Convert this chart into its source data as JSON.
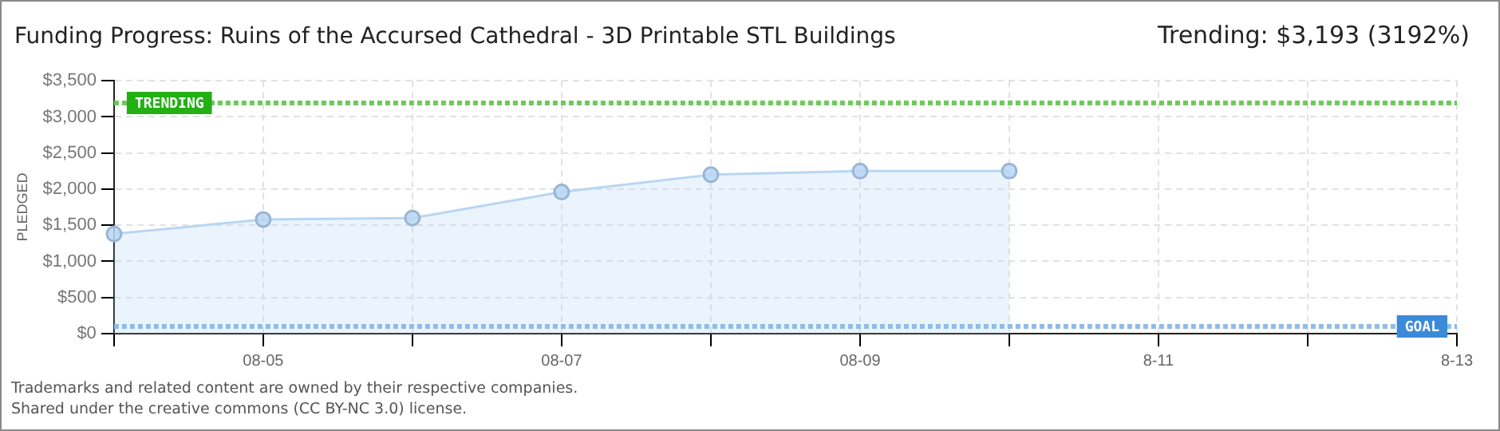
{
  "chart_data": {
    "type": "area",
    "title": "Funding Progress: Ruins of the Accursed Cathedral - 3D Printable STL Buildings",
    "subtitle": "Trending: $3,193 (3192%)",
    "ylabel": "PLEDGED",
    "categories": [
      null,
      "08-05",
      null,
      "08-07",
      null,
      "08-09",
      null,
      "8-11",
      null,
      "8-13"
    ],
    "series": [
      {
        "color": "#b8d6f3",
        "values": [
          1380,
          1580,
          1600,
          1960,
          2200,
          2250,
          2250,
          null,
          null,
          null
        ]
      }
    ],
    "ylim": [
      0,
      3500
    ],
    "yticks": [
      {
        "value": 0,
        "label": "$0"
      },
      {
        "value": 500,
        "label": "$500"
      },
      {
        "value": 1000,
        "label": "$1,000"
      },
      {
        "value": 1500,
        "label": "$1,500"
      },
      {
        "value": 2000,
        "label": "$2,000"
      },
      {
        "value": 2500,
        "label": "$2,500"
      },
      {
        "value": 3000,
        "label": "$3,000"
      },
      {
        "value": 3500,
        "label": "$3,500"
      }
    ],
    "ref_lines": [
      {
        "axis": "y",
        "value": 3193,
        "label": "TRENDING",
        "color": "#6cc95a",
        "line_style": "dotted"
      },
      {
        "axis": "y",
        "value": 100,
        "label": "GOAL",
        "color": "#8fbbe8",
        "line_style": "dotted"
      }
    ],
    "grid": true,
    "marker": "circle",
    "legend": false,
    "annotations": [
      "Trademarks and related content are owned by their respective companies.",
      "Shared under the creative commons (CC BY-NC 3.0) license."
    ]
  }
}
